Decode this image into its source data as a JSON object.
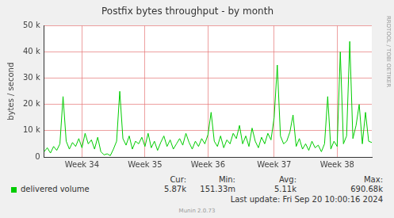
{
  "chart_data": {
    "type": "line",
    "title": "Postfix bytes throughput - by month",
    "y_label": "bytes / second",
    "categories": [
      null,
      null,
      null,
      null,
      null,
      null,
      null,
      null,
      null,
      null,
      null,
      null,
      "Week 34",
      null,
      null,
      null,
      null,
      null,
      null,
      null,
      null,
      null,
      null,
      null,
      null,
      null,
      null,
      null,
      null,
      null,
      null,
      null,
      "Week 35",
      null,
      null,
      null,
      null,
      null,
      null,
      null,
      null,
      null,
      null,
      null,
      null,
      null,
      null,
      null,
      null,
      null,
      null,
      null,
      "Week 36",
      null,
      null,
      null,
      null,
      null,
      null,
      null,
      null,
      null,
      null,
      null,
      null,
      null,
      null,
      null,
      null,
      null,
      null,
      null,
      null,
      "Week 37",
      null,
      null,
      null,
      null,
      null,
      null,
      null,
      null,
      null,
      null,
      null,
      null,
      null,
      null,
      null,
      null,
      null,
      null,
      null,
      "Week 38",
      null,
      null,
      null,
      null,
      null,
      null,
      null,
      null,
      null,
      null,
      null
    ],
    "series": [
      {
        "name": "delivered volume",
        "color": "#00cc00",
        "values": [
          2000,
          3500,
          1500,
          4000,
          2500,
          5000,
          23000,
          6000,
          3000,
          5500,
          4000,
          7000,
          3500,
          9000,
          5000,
          6500,
          3000,
          7500,
          2000,
          800,
          1200,
          500,
          3000,
          6000,
          25000,
          7000,
          4500,
          8000,
          3000,
          6000,
          5000,
          7500,
          4000,
          9000,
          3500,
          6000,
          2500,
          5500,
          8000,
          4000,
          6500,
          3000,
          5000,
          7000,
          4500,
          9000,
          5500,
          3000,
          6000,
          4000,
          7000,
          5000,
          8500,
          17000,
          6000,
          4000,
          8000,
          3500,
          6500,
          5000,
          9000,
          7000,
          12000,
          5000,
          8000,
          4000,
          11000,
          6000,
          3500,
          7500,
          5000,
          9000,
          6500,
          15000,
          35000,
          8000,
          5000,
          6000,
          9500,
          16000,
          4000,
          7000,
          3000,
          5000,
          2500,
          6000,
          3500,
          4500,
          2000,
          5000,
          23000,
          3000,
          6000,
          4000,
          40000,
          5000,
          8000,
          44000,
          7000,
          12000,
          20000,
          5000,
          17000,
          6000,
          5500
        ]
      }
    ],
    "ylim": [
      0,
      50000
    ],
    "yticks": [
      0,
      {
        "value": 10000,
        "label": "10 k"
      },
      {
        "value": 20000,
        "label": "20 k"
      },
      {
        "value": 30000,
        "label": "30 k"
      },
      {
        "value": 40000,
        "label": "40 k"
      },
      {
        "value": 50000,
        "label": "50 k"
      }
    ],
    "grid": true,
    "legend_stats": [
      {
        "label": "Cur:",
        "value": "5.87k"
      },
      {
        "label": "Min:",
        "value": "151.33m"
      },
      {
        "label": "Avg:",
        "value": "5.11k"
      },
      {
        "label": "Max:",
        "value": "690.68k"
      }
    ],
    "last_update": "Last update: Fri Sep 20 10:00:16 2024",
    "footer": "Munin 2.0.73",
    "watermark": "RRDTOOL / TOBI OETIKER"
  }
}
